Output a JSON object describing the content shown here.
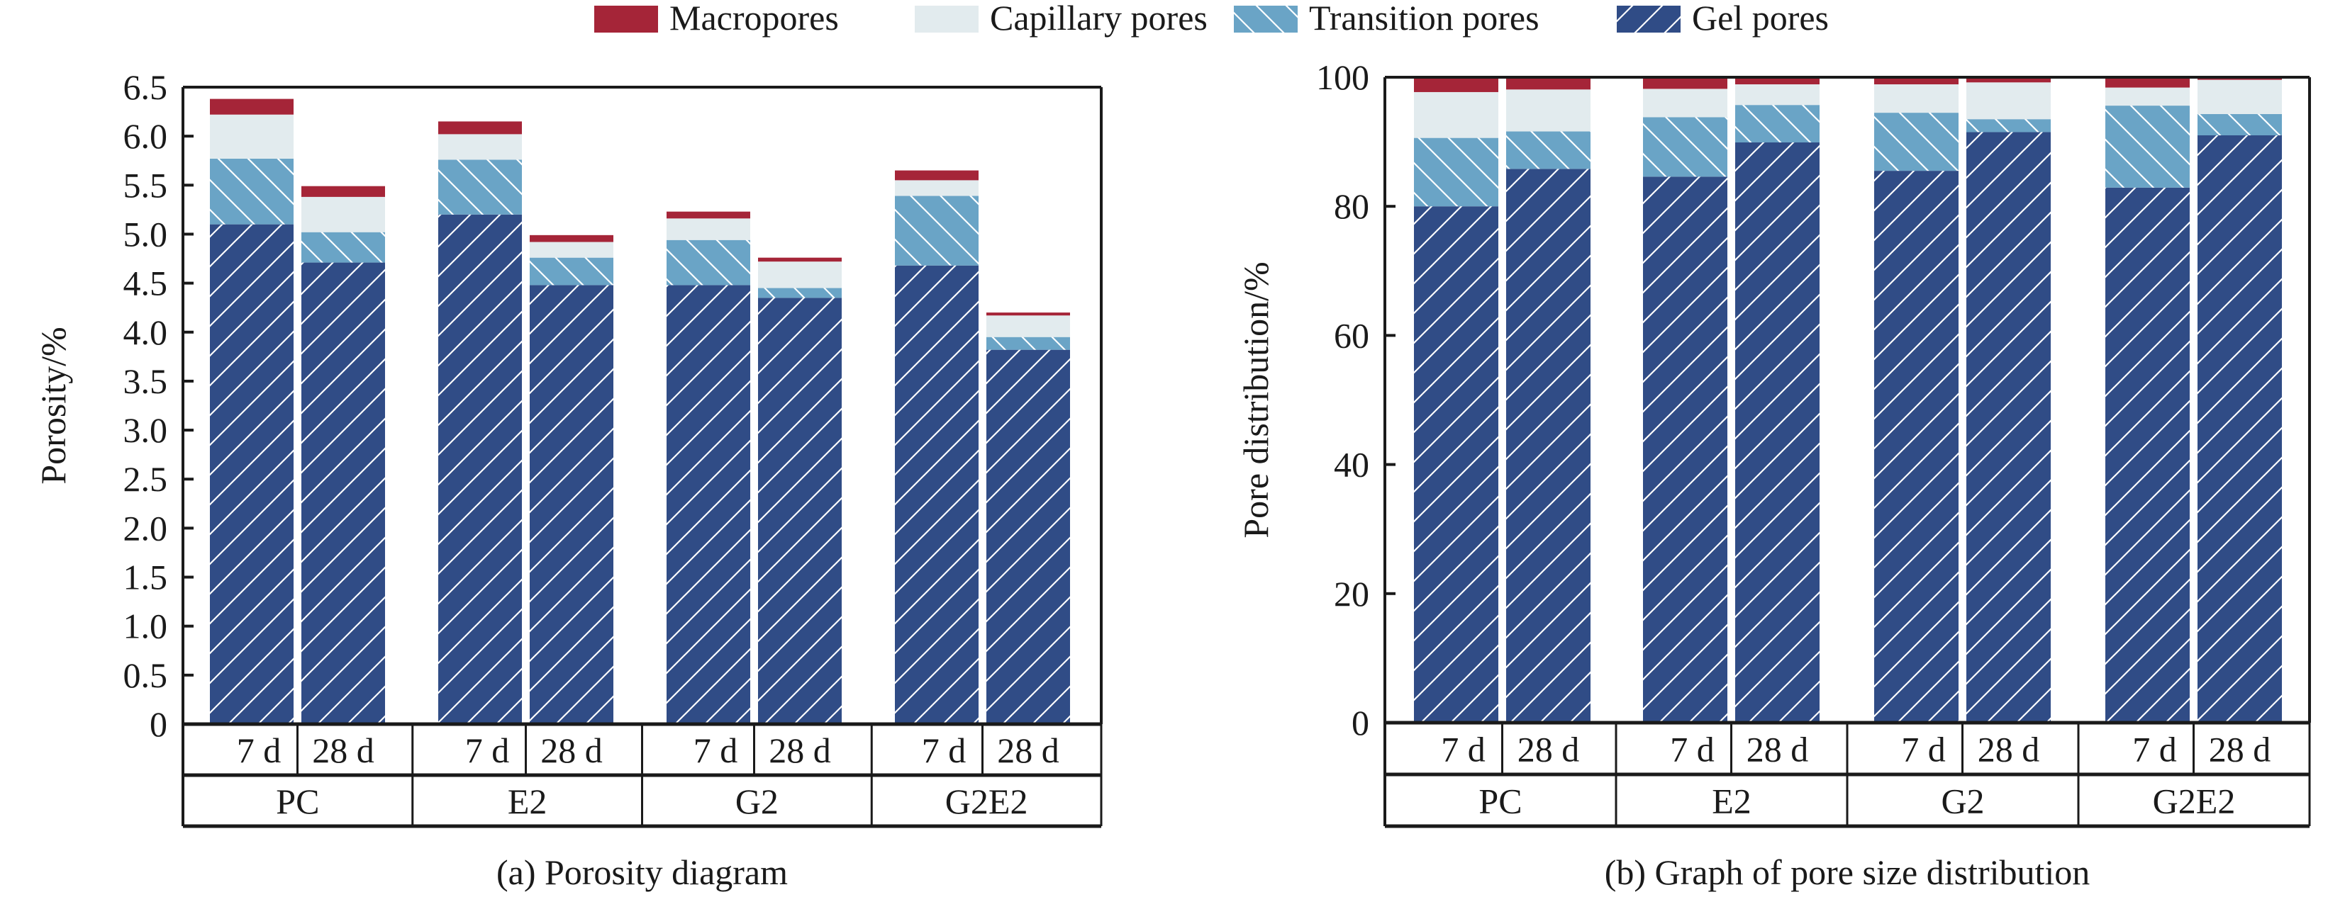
{
  "legend": {
    "items": [
      {
        "label": "Macropores",
        "color": "#a52538",
        "pattern": "none"
      },
      {
        "label": "Capillary pores",
        "color": "#e2ebee",
        "pattern": "none"
      },
      {
        "label": "Transition pores",
        "color": "#6aa4c6",
        "pattern": "backslash"
      },
      {
        "label": "Gel pores",
        "color": "#304c86",
        "pattern": "slash"
      }
    ]
  },
  "chart_data": [
    {
      "type": "bar",
      "stacked": true,
      "title": "(a) Porosity diagram",
      "xlabel": "",
      "ylabel": "Porosity/%",
      "ylim": [
        0,
        6.5
      ],
      "yticks": [
        "0",
        "0.5",
        "1.0",
        "1.5",
        "2.0",
        "2.5",
        "3.0",
        "3.5",
        "4.0",
        "4.5",
        "5.0",
        "5.5",
        "6.0",
        "6.5"
      ],
      "ytick_values": [
        0,
        0.5,
        1.0,
        1.5,
        2.0,
        2.5,
        3.0,
        3.5,
        4.0,
        4.5,
        5.0,
        5.5,
        6.0,
        6.5
      ],
      "groups": [
        "PC",
        "E2",
        "G2",
        "G2E2"
      ],
      "ages": [
        "7 d",
        "28 d"
      ],
      "categories": [
        "PC 7 d",
        "PC 28 d",
        "E2 7 d",
        "E2 28 d",
        "G2 7 d",
        "G2 28 d",
        "G2E2 7 d",
        "G2E2 28 d"
      ],
      "series": [
        {
          "name": "Gel pores",
          "values": [
            5.1,
            4.71,
            5.2,
            4.48,
            4.48,
            4.35,
            4.68,
            3.82
          ]
        },
        {
          "name": "Transition pores",
          "values": [
            0.67,
            0.31,
            0.56,
            0.28,
            0.46,
            0.1,
            0.71,
            0.13
          ]
        },
        {
          "name": "Capillary pores",
          "values": [
            0.45,
            0.36,
            0.26,
            0.16,
            0.22,
            0.27,
            0.16,
            0.22
          ]
        },
        {
          "name": "Macropores",
          "values": [
            0.16,
            0.11,
            0.13,
            0.07,
            0.07,
            0.04,
            0.1,
            0.03
          ]
        }
      ],
      "totals": [
        6.38,
        5.49,
        6.15,
        4.99,
        5.23,
        4.76,
        5.65,
        4.2
      ],
      "legend": "top",
      "grid": false
    },
    {
      "type": "bar",
      "stacked": true,
      "title": "(b) Graph of pore size distribution",
      "xlabel": "",
      "ylabel": "Pore distribution/%",
      "ylim": [
        0,
        100
      ],
      "yticks": [
        "0",
        "20",
        "40",
        "60",
        "80",
        "100"
      ],
      "ytick_values": [
        0,
        20,
        40,
        60,
        80,
        100
      ],
      "groups": [
        "PC",
        "E2",
        "G2",
        "G2E2"
      ],
      "ages": [
        "7 d",
        "28 d"
      ],
      "categories": [
        "PC 7 d",
        "PC 28 d",
        "E2 7 d",
        "E2 28 d",
        "G2 7 d",
        "G2 28 d",
        "G2E2 7 d",
        "G2E2 28 d"
      ],
      "series": [
        {
          "name": "Gel pores",
          "values": [
            80.0,
            85.8,
            84.6,
            89.9,
            85.5,
            91.5,
            82.9,
            91.0
          ]
        },
        {
          "name": "Transition pores",
          "values": [
            10.6,
            5.8,
            9.2,
            5.8,
            9.0,
            2.0,
            12.7,
            3.3
          ]
        },
        {
          "name": "Capillary pores",
          "values": [
            7.1,
            6.5,
            4.4,
            3.2,
            4.4,
            5.7,
            2.8,
            5.3
          ]
        },
        {
          "name": "Macropores",
          "values": [
            2.3,
            1.9,
            1.8,
            1.1,
            1.1,
            0.8,
            1.6,
            0.4
          ]
        }
      ],
      "legend": "top",
      "grid": false
    }
  ]
}
